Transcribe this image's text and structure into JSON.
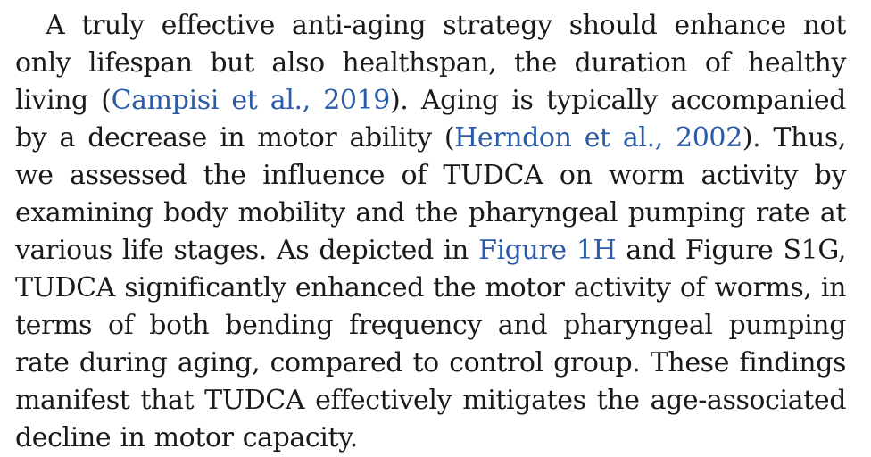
{
  "paragraph": {
    "segments": [
      {
        "type": "text",
        "text": "A truly effective anti-aging strategy should enhance not only lifespan but also healthspan, the duration of healthy living ("
      },
      {
        "type": "link",
        "text": "Campisi et al., 2019"
      },
      {
        "type": "text",
        "text": "). Aging is typically accompanied by a decrease in motor ability ("
      },
      {
        "type": "link",
        "text": "Herndon et al., 2002"
      },
      {
        "type": "text",
        "text": "). Thus, we assessed the influence of TUDCA on worm activity by examining body mobility and the pharyngeal pumping rate at various life stages. As depicted in "
      },
      {
        "type": "link",
        "text": "Figure 1H"
      },
      {
        "type": "text",
        "text": " and Figure S1G, TUDCA significantly enhanced the motor activity of worms, in terms of both bending frequency and pharyngeal pumping rate during aging, compared to control group. These findings manifest that TUDCA effectively mitigates the age-associated decline in motor capacity."
      }
    ]
  },
  "colors": {
    "text": "#1a1a1a",
    "link": "#2a5aa8",
    "background": "#ffffff"
  }
}
